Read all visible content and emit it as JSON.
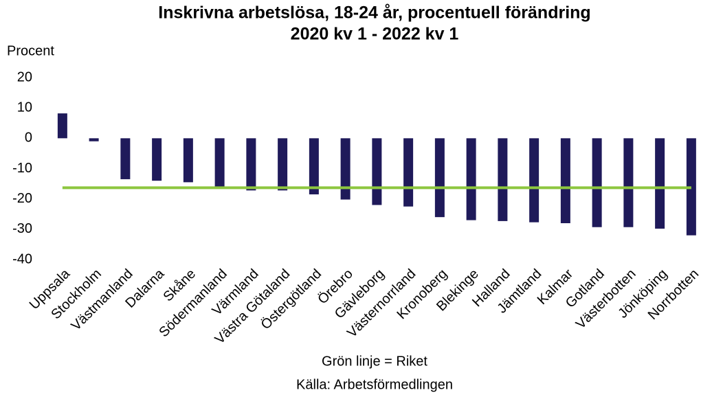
{
  "chart_data": {
    "type": "bar",
    "title": [
      "Inskrivna arbetslösa, 18-24 år, procentuell förändring",
      "2020 kv 1 - 2022 kv 1"
    ],
    "y_label": "Procent",
    "annotations": [
      "Grön linje = Riket",
      "Källa: Arbetsförmedlingen"
    ],
    "categories": [
      "Uppsala",
      "Stockholm",
      "Västmanland",
      "Dalarna",
      "Skåne",
      "Södermanland",
      "Värmland",
      "Västra Götaland",
      "Östergötland",
      "Örebro",
      "Gävleborg",
      "Västernorrland",
      "Kronoberg",
      "Blekinge",
      "Halland",
      "Jämtland",
      "Kalmar",
      "Gotland",
      "Västerbotten",
      "Jönköping",
      "Norrbotten"
    ],
    "values": [
      8.2,
      -1,
      -13.5,
      -14,
      -14.5,
      -16,
      -17.2,
      -17.2,
      -18.5,
      -20.2,
      -22,
      -22.5,
      -26,
      -27,
      -27.3,
      -27.7,
      -28,
      -29.3,
      -29.3,
      -29.8,
      -32
    ],
    "color": "#1f1a5a",
    "reference_line": {
      "value": -16.3,
      "color": "#8dc63f"
    },
    "ylim": [
      -40,
      20
    ],
    "yticks": [
      20,
      10,
      0,
      -10,
      -20,
      -30,
      -40
    ],
    "grid": false
  }
}
